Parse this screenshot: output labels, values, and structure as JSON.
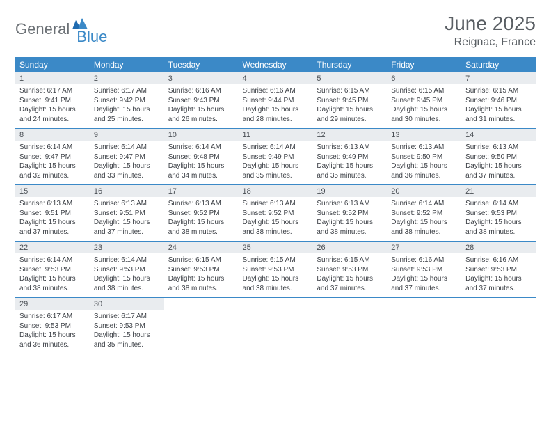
{
  "logo": {
    "part1": "General",
    "part2": "Blue"
  },
  "title": "June 2025",
  "location": "Reignac, France",
  "colors": {
    "header_bg": "#3b89c7",
    "header_text": "#ffffff",
    "daynum_bg": "#e9ecef",
    "text": "#3d4147",
    "title_text": "#5a5f64",
    "logo_gray": "#6b7075",
    "logo_blue": "#3b89c7",
    "page_bg": "#ffffff"
  },
  "day_names": [
    "Sunday",
    "Monday",
    "Tuesday",
    "Wednesday",
    "Thursday",
    "Friday",
    "Saturday"
  ],
  "weeks": [
    [
      {
        "n": "1",
        "sr": "6:17 AM",
        "ss": "9:41 PM",
        "dh": "15",
        "dm": "24"
      },
      {
        "n": "2",
        "sr": "6:17 AM",
        "ss": "9:42 PM",
        "dh": "15",
        "dm": "25"
      },
      {
        "n": "3",
        "sr": "6:16 AM",
        "ss": "9:43 PM",
        "dh": "15",
        "dm": "26"
      },
      {
        "n": "4",
        "sr": "6:16 AM",
        "ss": "9:44 PM",
        "dh": "15",
        "dm": "28"
      },
      {
        "n": "5",
        "sr": "6:15 AM",
        "ss": "9:45 PM",
        "dh": "15",
        "dm": "29"
      },
      {
        "n": "6",
        "sr": "6:15 AM",
        "ss": "9:45 PM",
        "dh": "15",
        "dm": "30"
      },
      {
        "n": "7",
        "sr": "6:15 AM",
        "ss": "9:46 PM",
        "dh": "15",
        "dm": "31"
      }
    ],
    [
      {
        "n": "8",
        "sr": "6:14 AM",
        "ss": "9:47 PM",
        "dh": "15",
        "dm": "32"
      },
      {
        "n": "9",
        "sr": "6:14 AM",
        "ss": "9:47 PM",
        "dh": "15",
        "dm": "33"
      },
      {
        "n": "10",
        "sr": "6:14 AM",
        "ss": "9:48 PM",
        "dh": "15",
        "dm": "34"
      },
      {
        "n": "11",
        "sr": "6:14 AM",
        "ss": "9:49 PM",
        "dh": "15",
        "dm": "35"
      },
      {
        "n": "12",
        "sr": "6:13 AM",
        "ss": "9:49 PM",
        "dh": "15",
        "dm": "35"
      },
      {
        "n": "13",
        "sr": "6:13 AM",
        "ss": "9:50 PM",
        "dh": "15",
        "dm": "36"
      },
      {
        "n": "14",
        "sr": "6:13 AM",
        "ss": "9:50 PM",
        "dh": "15",
        "dm": "37"
      }
    ],
    [
      {
        "n": "15",
        "sr": "6:13 AM",
        "ss": "9:51 PM",
        "dh": "15",
        "dm": "37"
      },
      {
        "n": "16",
        "sr": "6:13 AM",
        "ss": "9:51 PM",
        "dh": "15",
        "dm": "37"
      },
      {
        "n": "17",
        "sr": "6:13 AM",
        "ss": "9:52 PM",
        "dh": "15",
        "dm": "38"
      },
      {
        "n": "18",
        "sr": "6:13 AM",
        "ss": "9:52 PM",
        "dh": "15",
        "dm": "38"
      },
      {
        "n": "19",
        "sr": "6:13 AM",
        "ss": "9:52 PM",
        "dh": "15",
        "dm": "38"
      },
      {
        "n": "20",
        "sr": "6:14 AM",
        "ss": "9:52 PM",
        "dh": "15",
        "dm": "38"
      },
      {
        "n": "21",
        "sr": "6:14 AM",
        "ss": "9:53 PM",
        "dh": "15",
        "dm": "38"
      }
    ],
    [
      {
        "n": "22",
        "sr": "6:14 AM",
        "ss": "9:53 PM",
        "dh": "15",
        "dm": "38"
      },
      {
        "n": "23",
        "sr": "6:14 AM",
        "ss": "9:53 PM",
        "dh": "15",
        "dm": "38"
      },
      {
        "n": "24",
        "sr": "6:15 AM",
        "ss": "9:53 PM",
        "dh": "15",
        "dm": "38"
      },
      {
        "n": "25",
        "sr": "6:15 AM",
        "ss": "9:53 PM",
        "dh": "15",
        "dm": "38"
      },
      {
        "n": "26",
        "sr": "6:15 AM",
        "ss": "9:53 PM",
        "dh": "15",
        "dm": "37"
      },
      {
        "n": "27",
        "sr": "6:16 AM",
        "ss": "9:53 PM",
        "dh": "15",
        "dm": "37"
      },
      {
        "n": "28",
        "sr": "6:16 AM",
        "ss": "9:53 PM",
        "dh": "15",
        "dm": "37"
      }
    ],
    [
      {
        "n": "29",
        "sr": "6:17 AM",
        "ss": "9:53 PM",
        "dh": "15",
        "dm": "36"
      },
      {
        "n": "30",
        "sr": "6:17 AM",
        "ss": "9:53 PM",
        "dh": "15",
        "dm": "35"
      },
      null,
      null,
      null,
      null,
      null
    ]
  ],
  "labels": {
    "sunrise": "Sunrise:",
    "sunset": "Sunset:",
    "daylight": "Daylight:",
    "hours": "hours",
    "and": "and",
    "minutes": "minutes."
  }
}
